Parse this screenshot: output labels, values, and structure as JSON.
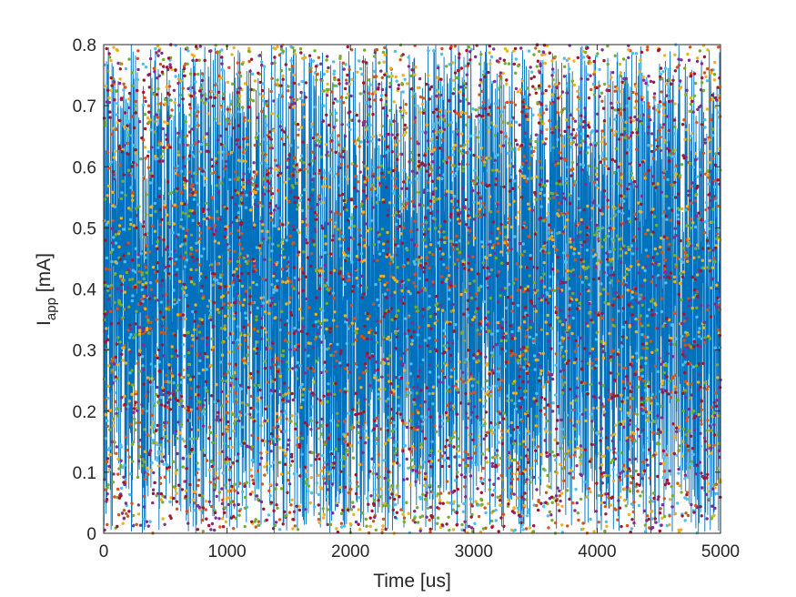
{
  "chart_data": {
    "type": "scatter",
    "title": "",
    "xlabel": "Time [us]",
    "ylabel": {
      "main": "I",
      "subscript": "app",
      "unit": " [mA]"
    },
    "xlim": [
      0,
      5000
    ],
    "ylim": [
      0,
      0.8
    ],
    "x_ticks": [
      0,
      1000,
      2000,
      3000,
      4000,
      5000
    ],
    "y_ticks": [
      0,
      0.1,
      0.2,
      0.3,
      0.4,
      0.5,
      0.6,
      0.7,
      0.8
    ],
    "x_tick_labels": [
      "0",
      "1000",
      "2000",
      "3000",
      "4000",
      "5000"
    ],
    "y_tick_labels": [
      "0",
      "0.1",
      "0.2",
      "0.3",
      "0.4",
      "0.5",
      "0.6",
      "0.7",
      "0.8"
    ],
    "grid": false,
    "legend": "none",
    "description_of_data": "Dense noise: a blue trace and many colored sample dots uniformly distributed between 0 and 0.8 mA over 0-5000 us",
    "series": [
      {
        "style": "line",
        "color": "#0072BD",
        "distribution": "uniform",
        "range": [
          0,
          0.8
        ]
      },
      {
        "style": "dots",
        "color": "#4DBEEE",
        "distribution": "uniform",
        "range": [
          0,
          0.8
        ]
      },
      {
        "style": "dots",
        "color": "#D95319",
        "distribution": "uniform",
        "range": [
          0,
          0.8
        ]
      },
      {
        "style": "dots",
        "color": "#EDB120",
        "distribution": "uniform",
        "range": [
          0,
          0.8
        ]
      },
      {
        "style": "dots",
        "color": "#7E2F8E",
        "distribution": "uniform",
        "range": [
          0,
          0.8
        ]
      },
      {
        "style": "dots",
        "color": "#77AC30",
        "distribution": "uniform",
        "range": [
          0,
          0.8
        ]
      },
      {
        "style": "dots",
        "color": "#A2142F",
        "distribution": "uniform",
        "range": [
          0,
          0.8
        ]
      }
    ]
  }
}
